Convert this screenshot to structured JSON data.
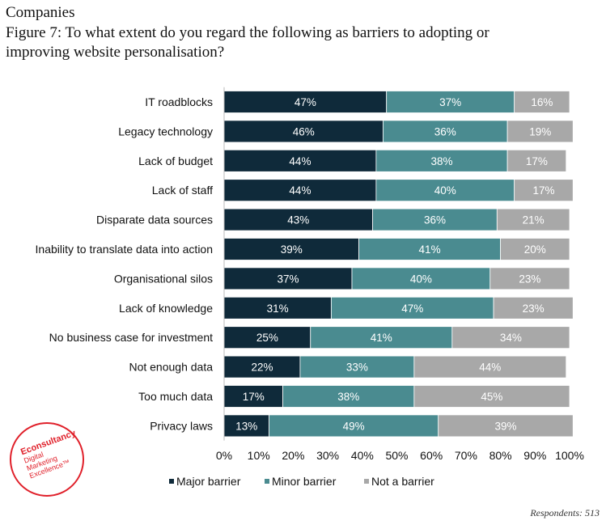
{
  "header": {
    "section": "Companies",
    "title_line1": "Figure 7: To what extent do you regard the following as barriers to adopting or",
    "title_line2": "improving website personalisation?"
  },
  "footer": {
    "respondents": "Respondents: 513"
  },
  "logo": {
    "brand": "Econsultancy",
    "line2": "Digital",
    "line3": "Marketing",
    "line4": "Excellence™"
  },
  "chart_data": {
    "type": "bar",
    "orientation": "horizontal",
    "stacked": true,
    "categories": [
      "IT roadblocks",
      "Legacy technology",
      "Lack of budget",
      "Lack of staff",
      "Disparate data sources",
      "Inability to translate data into action",
      "Organisational silos",
      "Lack of knowledge",
      "No business case for investment",
      "Not enough data",
      "Too much data",
      "Privacy laws"
    ],
    "series": [
      {
        "name": "Major barrier",
        "color": "#0f2a3a",
        "label_color": "#ffffff",
        "values": [
          47,
          46,
          44,
          44,
          43,
          39,
          37,
          31,
          25,
          22,
          17,
          13
        ]
      },
      {
        "name": "Minor barrier",
        "color": "#4a8b90",
        "label_color": "#ffffff",
        "values": [
          37,
          36,
          38,
          40,
          36,
          41,
          40,
          47,
          41,
          33,
          38,
          49
        ]
      },
      {
        "name": "Not a barrier",
        "color": "#a8a8a8",
        "label_color": "#ffffff",
        "values": [
          16,
          19,
          17,
          17,
          21,
          20,
          23,
          23,
          34,
          44,
          45,
          39
        ]
      }
    ],
    "xlim": [
      0,
      100
    ],
    "xticks": [
      "0%",
      "10%",
      "20%",
      "30%",
      "40%",
      "50%",
      "60%",
      "70%",
      "80%",
      "90%",
      "100%"
    ],
    "legend": "bottom"
  }
}
